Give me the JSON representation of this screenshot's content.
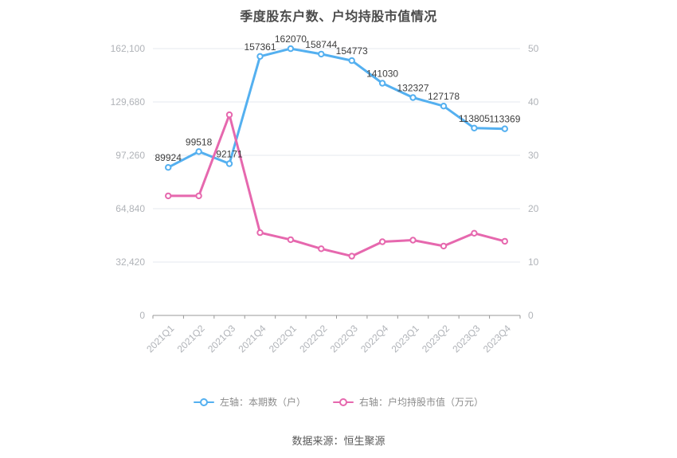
{
  "title": "季度股东户数、户均持股市值情况",
  "footer": {
    "source": "数据来源：恒生聚源"
  },
  "legend": {
    "items": [
      {
        "label": "左轴：本期数（户）",
        "color": "#54b0f0"
      },
      {
        "label": "右轴：户均持股市值（万元）",
        "color": "#e668ae"
      }
    ]
  },
  "colors": {
    "blue": "#54b0f0",
    "pink": "#e668ae",
    "grid": "#e4e8ef",
    "axis_line": "#999999",
    "tick_label": "#b0b3b8",
    "data_label": "#3d3d3d",
    "title_text": "#4a4a4a",
    "legend_text": "#8c8c8c",
    "footer_text": "#595959",
    "background": "#ffffff"
  },
  "chart_data": {
    "type": "line",
    "title": "季度股东户数、户均持股市值情况",
    "categories": [
      "2021Q1",
      "2021Q2",
      "2021Q3",
      "2021Q4",
      "2022Q1",
      "2022Q2",
      "2022Q3",
      "2022Q4",
      "2023Q1",
      "2023Q2",
      "2023Q3",
      "2023Q4"
    ],
    "series": [
      {
        "name": "左轴：本期数（户）",
        "axis": "left",
        "color": "#54b0f0",
        "point_labels": true,
        "values": [
          89924,
          99518,
          92171,
          157361,
          162070,
          158744,
          154773,
          141030,
          132327,
          127178,
          113805,
          113369
        ]
      },
      {
        "name": "右轴：户均持股市值（万元）",
        "axis": "right",
        "color": "#e668ae",
        "point_labels": false,
        "values": [
          22.4,
          22.4,
          37.6,
          15.5,
          14.2,
          12.5,
          11.1,
          13.8,
          14.1,
          13.0,
          15.4,
          13.9
        ]
      }
    ],
    "left_axis": {
      "ticks": [
        0,
        32420,
        64840,
        97260,
        129680,
        162100
      ],
      "max": 162100,
      "format": "thousands"
    },
    "right_axis": {
      "ticks": [
        0,
        10,
        20,
        30,
        40,
        50
      ],
      "max": 50
    },
    "grid": true,
    "legend_position": "bottom",
    "x_label_rotation": -45
  }
}
